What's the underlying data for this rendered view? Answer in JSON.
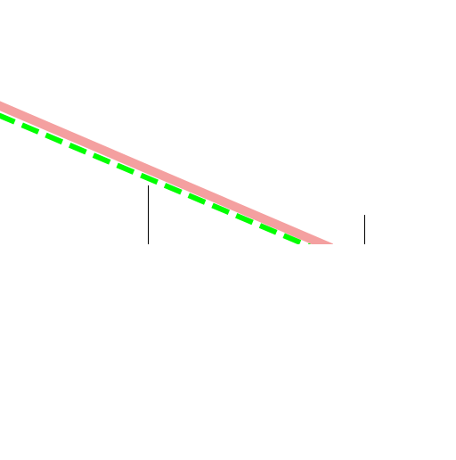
{
  "diagram": {
    "background_color": "#ffffff",
    "lines": [
      {
        "name": "salmon-solid-line",
        "color": "#f4a0a0",
        "style": "solid"
      },
      {
        "name": "green-dashed-line",
        "color": "#00ff00",
        "style": "dashed"
      }
    ],
    "markers": [
      {
        "name": "vertical-marker-left",
        "color": "#000000"
      },
      {
        "name": "vertical-marker-right",
        "color": "#000000"
      }
    ]
  }
}
